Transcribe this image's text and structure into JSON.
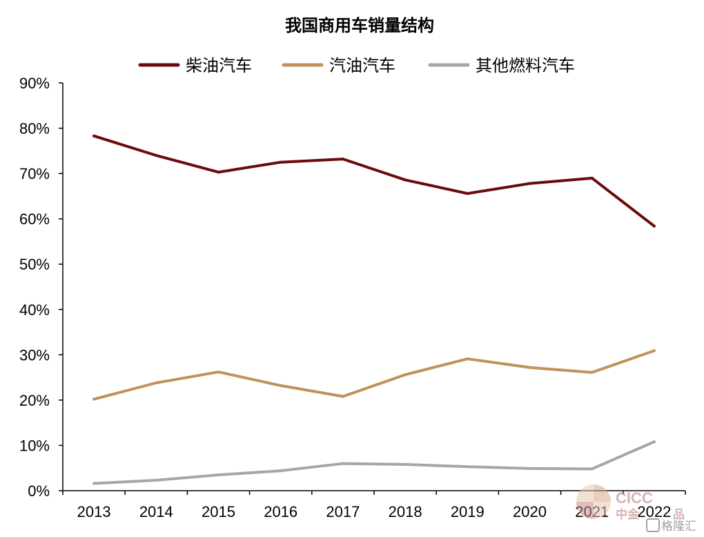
{
  "chart_data": {
    "type": "line",
    "title": "我国商用车销量结构",
    "xlabel": "",
    "ylabel": "",
    "x": [
      "2013",
      "2014",
      "2015",
      "2016",
      "2017",
      "2018",
      "2019",
      "2020",
      "2021",
      "2022"
    ],
    "ylim": [
      0,
      90
    ],
    "yticks": [
      0,
      10,
      20,
      30,
      40,
      50,
      60,
      70,
      80,
      90
    ],
    "ytick_labels": [
      "0%",
      "10%",
      "20%",
      "30%",
      "40%",
      "50%",
      "60%",
      "70%",
      "80%",
      "90%"
    ],
    "grid": false,
    "legend_position": "top-center",
    "series": [
      {
        "name": "柴油汽车",
        "color": "#6b0a0a",
        "values": [
          78.3,
          74.0,
          70.3,
          72.5,
          73.2,
          68.6,
          65.6,
          67.8,
          69.0,
          58.4
        ]
      },
      {
        "name": "汽油汽车",
        "color": "#c0915a",
        "values": [
          20.2,
          23.8,
          26.2,
          23.2,
          20.8,
          25.6,
          29.1,
          27.2,
          26.1,
          30.9
        ]
      },
      {
        "name": "其他燃料汽车",
        "color": "#a6a6a6",
        "values": [
          1.6,
          2.3,
          3.5,
          4.4,
          6.0,
          5.8,
          5.3,
          4.9,
          4.8,
          10.8
        ]
      }
    ]
  },
  "watermarks": {
    "cicc_logo": "CICC",
    "cicc_name": "中金",
    "cicc_suffix": "品",
    "gelonghui": "格隆汇"
  }
}
